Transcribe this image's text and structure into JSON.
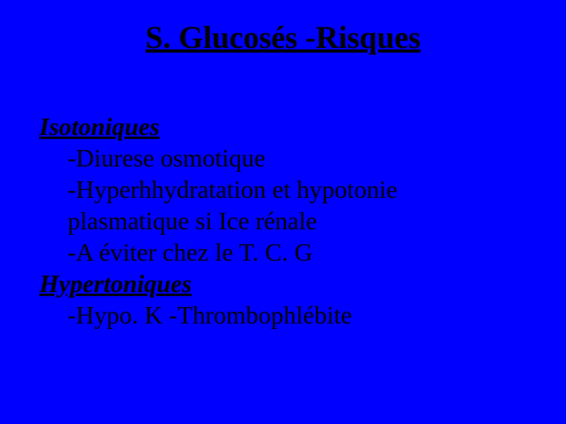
{
  "background_color": "#0000fe",
  "text_color": "#000000",
  "font_family": "Times New Roman",
  "title": {
    "text": "S. Glucosés -Risques",
    "fontsize": 40,
    "bold": true,
    "italic": false,
    "underline": true,
    "align": "center"
  },
  "body_fontsize": 32,
  "sections": {
    "iso_head": "Isotoniques",
    "iso_line1": "-Diurese osmotique",
    "iso_line2": "-Hyperhhydratation   et  hypotonie",
    "iso_line3": "plasmatique si Ice rénale",
    "iso_line4": "-A éviter chez le T. C. G",
    "hyper_head": "Hypertoniques",
    "hyper_line1": "-Hypo. K    -Thrombophlébite"
  }
}
